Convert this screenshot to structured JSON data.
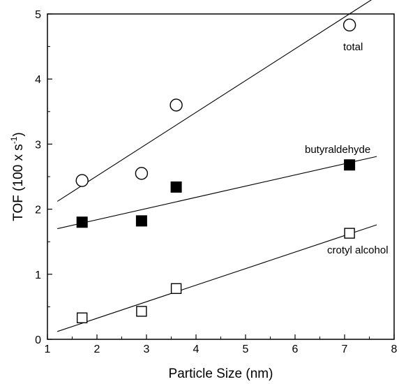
{
  "chart_data": {
    "type": "scatter",
    "title": "",
    "xlabel": "Particle Size (nm)",
    "ylabel_parts": {
      "main": "TOF (100 x s",
      "sup": "-1",
      "close": ")"
    },
    "xlim": [
      1,
      8
    ],
    "ylim": [
      0,
      5
    ],
    "xticks": [
      "1",
      "2",
      "3",
      "4",
      "5",
      "6",
      "7",
      "8"
    ],
    "yticks": [
      "0",
      "1",
      "2",
      "3",
      "4",
      "5"
    ],
    "grid": false,
    "legend": "none",
    "series": [
      {
        "name": "total",
        "marker": "open-circle",
        "color": "#000000",
        "x": [
          1.7,
          2.9,
          3.6,
          7.1
        ],
        "y": [
          2.44,
          2.55,
          3.6,
          4.83
        ],
        "fit": {
          "x": [
            1.2,
            7.65
          ],
          "y": [
            2.12,
            5.27
          ]
        }
      },
      {
        "name": "butyraldehyde",
        "marker": "filled-square",
        "color": "#000000",
        "x": [
          1.7,
          2.9,
          3.6,
          7.1
        ],
        "y": [
          1.8,
          1.82,
          2.34,
          2.68
        ],
        "fit": {
          "x": [
            1.2,
            7.65
          ],
          "y": [
            1.7,
            2.81
          ]
        }
      },
      {
        "name": "crotyl alcohol",
        "marker": "open-square",
        "color": "#000000",
        "x": [
          1.7,
          2.9,
          3.6,
          7.1
        ],
        "y": [
          0.33,
          0.43,
          0.78,
          1.63
        ],
        "fit": {
          "x": [
            1.2,
            7.65
          ],
          "y": [
            0.12,
            1.76
          ]
        }
      }
    ]
  }
}
